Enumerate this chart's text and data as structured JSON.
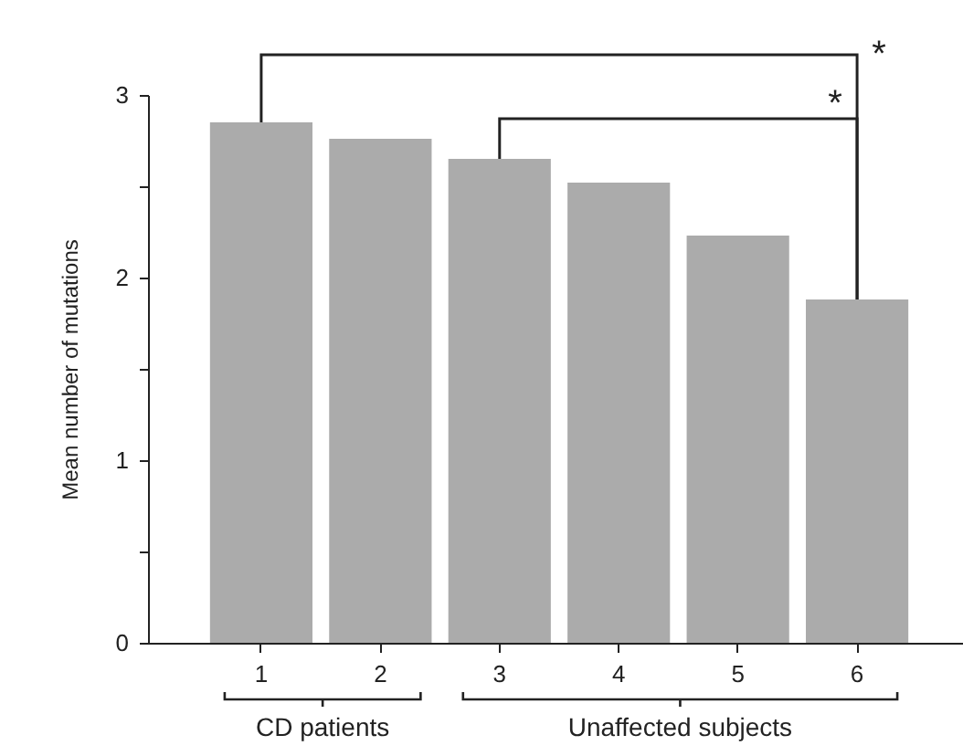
{
  "chart_data": {
    "type": "bar",
    "ylabel": "Mean number of mutations",
    "categories": [
      "1",
      "2",
      "3",
      "4",
      "5",
      "6"
    ],
    "values": [
      2.85,
      2.76,
      2.65,
      2.52,
      2.23,
      1.88
    ],
    "color": "#ababab",
    "ylim": [
      0,
      3
    ],
    "yticks": [
      0,
      {
        "value": 0.5,
        "label": null
      },
      1,
      {
        "value": 1.5,
        "label": null
      },
      2,
      {
        "value": 2.5,
        "label": null
      },
      3
    ],
    "grid": false,
    "annotations": [
      "*",
      "*",
      "CD patients",
      "Unaffected subjects"
    ]
  }
}
